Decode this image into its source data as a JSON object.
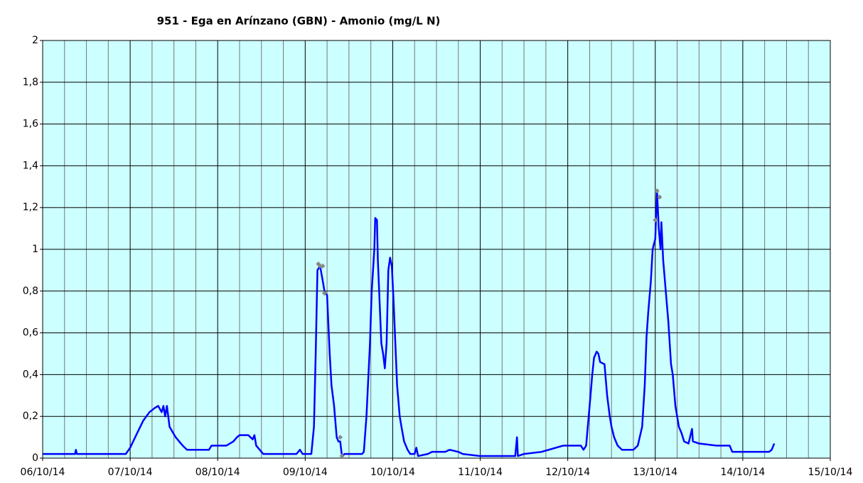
{
  "chart_data": {
    "type": "line",
    "title": "951 - Ega en Arínzano (GBN) - Amonio (mg/L N)",
    "xlim": [
      0,
      9
    ],
    "xticks": [
      {
        "value": 0,
        "label": "06/10/14"
      },
      {
        "value": 1,
        "label": "07/10/14"
      },
      {
        "value": 2,
        "label": "08/10/14"
      },
      {
        "value": 3,
        "label": "09/10/14"
      },
      {
        "value": 4,
        "label": "10/10/14"
      },
      {
        "value": 5,
        "label": "11/10/14"
      },
      {
        "value": 6,
        "label": "12/10/14"
      },
      {
        "value": 7,
        "label": "13/10/14"
      },
      {
        "value": 8,
        "label": "14/10/14"
      },
      {
        "value": 9,
        "label": "15/10/14"
      }
    ],
    "xminorticks": [
      0.25,
      0.5,
      0.75,
      1.25,
      1.5,
      1.75,
      2.25,
      2.5,
      2.75,
      3.25,
      3.5,
      3.75,
      4.25,
      4.5,
      4.75,
      5.25,
      5.5,
      5.75,
      6.25,
      6.5,
      6.75,
      7.25,
      7.5,
      7.75,
      8.25,
      8.5,
      8.75
    ],
    "ylim": [
      0,
      2
    ],
    "yticks": [
      0,
      {
        "value": 0.2,
        "label": "0,2"
      },
      {
        "value": 0.4,
        "label": "0,4"
      },
      {
        "value": 0.6,
        "label": "0,6"
      },
      {
        "value": 0.8,
        "label": "0,8"
      },
      1,
      {
        "value": 1.2,
        "label": "1,2"
      },
      {
        "value": 1.4,
        "label": "1,4"
      },
      {
        "value": 1.6,
        "label": "1,6"
      },
      {
        "value": 1.8,
        "label": "1,8"
      },
      2
    ],
    "grid": true,
    "series": [
      {
        "color": "#0000ff",
        "x": [
          0,
          0.37,
          0.38,
          0.39,
          0.95,
          1.0,
          1.08,
          1.15,
          1.22,
          1.28,
          1.32,
          1.36,
          1.38,
          1.4,
          1.42,
          1.45,
          1.52,
          1.6,
          1.65,
          1.9,
          1.93,
          2.1,
          2.18,
          2.22,
          2.25,
          2.35,
          2.4,
          2.42,
          2.44,
          2.5,
          2.52,
          2.9,
          2.94,
          2.97,
          3.07,
          3.1,
          3.12,
          3.14,
          3.17,
          3.2,
          3.22,
          3.25,
          3.28,
          3.3,
          3.33,
          3.36,
          3.38,
          3.4,
          3.42,
          3.45,
          3.65,
          3.67,
          3.7,
          3.74,
          3.76,
          3.79,
          3.8,
          3.82,
          3.83,
          3.85,
          3.87,
          3.89,
          3.91,
          3.93,
          3.95,
          3.97,
          3.99,
          4.01,
          4.03,
          4.05,
          4.08,
          4.1,
          4.13,
          4.17,
          4.2,
          4.25,
          4.27,
          4.29,
          4.4,
          4.45,
          4.6,
          4.65,
          4.75,
          4.8,
          5.0,
          5.4,
          5.42,
          5.43,
          5.5,
          5.7,
          5.95,
          6.15,
          6.18,
          6.21,
          6.25,
          6.28,
          6.3,
          6.33,
          6.35,
          6.37,
          6.42,
          6.45,
          6.48,
          6.5,
          6.53,
          6.57,
          6.62,
          6.75,
          6.8,
          6.85,
          6.88,
          6.9,
          6.92,
          6.95,
          6.97,
          7.0,
          7.02,
          7.04,
          7.06,
          7.07,
          7.09,
          7.12,
          7.15,
          7.18,
          7.2,
          7.23,
          7.27,
          7.3,
          7.33,
          7.38,
          7.42,
          7.43,
          7.5,
          7.7,
          7.85,
          7.88,
          8.3,
          8.33,
          8.36
        ],
        "values": [
          0.02,
          0.02,
          0.04,
          0.02,
          0.02,
          0.05,
          0.12,
          0.18,
          0.22,
          0.24,
          0.25,
          0.22,
          0.25,
          0.2,
          0.25,
          0.15,
          0.1,
          0.06,
          0.04,
          0.04,
          0.06,
          0.06,
          0.08,
          0.1,
          0.11,
          0.11,
          0.09,
          0.11,
          0.06,
          0.03,
          0.02,
          0.02,
          0.04,
          0.02,
          0.02,
          0.15,
          0.5,
          0.9,
          0.92,
          0.85,
          0.8,
          0.78,
          0.5,
          0.35,
          0.25,
          0.1,
          0.08,
          0.08,
          0.01,
          0.02,
          0.02,
          0.03,
          0.2,
          0.55,
          0.8,
          1.0,
          1.15,
          1.14,
          0.95,
          0.75,
          0.55,
          0.5,
          0.43,
          0.55,
          0.9,
          0.96,
          0.92,
          0.75,
          0.55,
          0.35,
          0.2,
          0.15,
          0.08,
          0.04,
          0.02,
          0.02,
          0.05,
          0.01,
          0.02,
          0.03,
          0.03,
          0.04,
          0.03,
          0.02,
          0.01,
          0.01,
          0.1,
          0.01,
          0.02,
          0.03,
          0.06,
          0.06,
          0.04,
          0.06,
          0.25,
          0.4,
          0.48,
          0.51,
          0.5,
          0.46,
          0.45,
          0.3,
          0.2,
          0.15,
          0.1,
          0.06,
          0.04,
          0.04,
          0.06,
          0.15,
          0.35,
          0.58,
          0.7,
          0.85,
          1.0,
          1.05,
          1.28,
          1.1,
          1.0,
          1.13,
          0.95,
          0.8,
          0.65,
          0.45,
          0.4,
          0.25,
          0.15,
          0.12,
          0.08,
          0.07,
          0.14,
          0.08,
          0.07,
          0.06,
          0.06,
          0.03,
          0.03,
          0.04,
          0.07
        ]
      },
      {
        "color": "#888888",
        "marker": "diamond",
        "x": [
          3.15,
          3.17,
          3.2,
          3.22,
          3.4,
          3.42,
          7.0,
          7.02,
          7.05
        ],
        "values": [
          0.93,
          0.92,
          0.92,
          0.79,
          0.1,
          0.01,
          1.14,
          1.28,
          1.25
        ]
      }
    ]
  }
}
